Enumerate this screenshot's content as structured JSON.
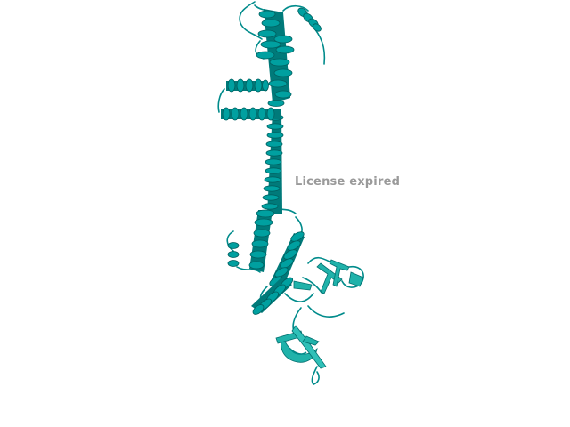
{
  "viewer": {
    "background": "#ffffff",
    "molecule_color": "#008b8b",
    "molecule_highlight": "#20b2aa",
    "molecule_dark": "#005f5f",
    "representation": "cartoon",
    "watermark_text": "License expired"
  }
}
